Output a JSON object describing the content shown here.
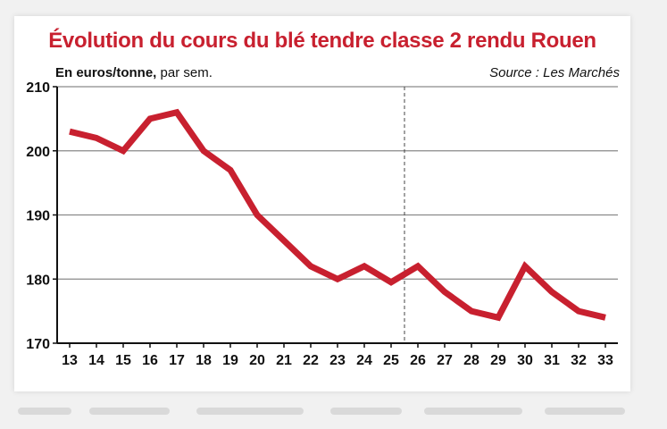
{
  "header": {
    "title": "Évolution du cours du blé tendre classe 2 rendu Rouen",
    "subtitle_bold": "En euros/tonne,",
    "subtitle_rest": " par sem.",
    "source": "Source : Les Marchés"
  },
  "colors": {
    "title": "#c8202f",
    "line": "#c8202f",
    "grid": "#8a8a8a",
    "axis": "#111111"
  },
  "chart_data": {
    "type": "line",
    "title": "Évolution du cours du blé tendre classe 2 rendu Rouen",
    "ylabel": "En euros/tonne, par sem.",
    "xlabel": "",
    "x": [
      13,
      14,
      15,
      16,
      17,
      18,
      19,
      20,
      21,
      22,
      23,
      24,
      25,
      26,
      27,
      28,
      29,
      30,
      31,
      32,
      33
    ],
    "values": [
      203,
      202,
      200,
      205,
      206,
      200,
      197,
      190,
      186,
      182,
      180,
      182,
      179.5,
      182,
      178,
      175,
      174,
      182,
      178,
      175,
      174
    ],
    "ylim": [
      170,
      210
    ],
    "yticks": [
      170,
      180,
      190,
      200,
      210
    ],
    "grid": true,
    "divider_between": [
      25,
      26
    ]
  }
}
